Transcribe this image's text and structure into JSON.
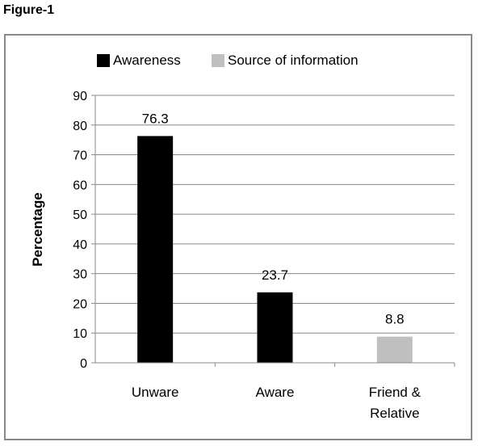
{
  "figure_label": "Figure-1",
  "chart_data": {
    "type": "bar",
    "categories": [
      "Unware",
      "Aware",
      "Friend & Relative"
    ],
    "category_lines": [
      [
        "Unware"
      ],
      [
        "Aware"
      ],
      [
        "Friend &",
        "Relative"
      ]
    ],
    "series": [
      {
        "name": "Awareness",
        "color": "#000000",
        "values": [
          76.3,
          23.7,
          null
        ]
      },
      {
        "name": "Source of information",
        "color": "#bfbfbf",
        "values": [
          null,
          null,
          8.8
        ]
      }
    ],
    "ylabel": "Percentage",
    "xlabel": "",
    "ylim": [
      0,
      90
    ],
    "yticks": [
      0,
      10,
      20,
      30,
      40,
      50,
      60,
      70,
      80,
      90
    ],
    "grid": true,
    "legend": "top"
  }
}
